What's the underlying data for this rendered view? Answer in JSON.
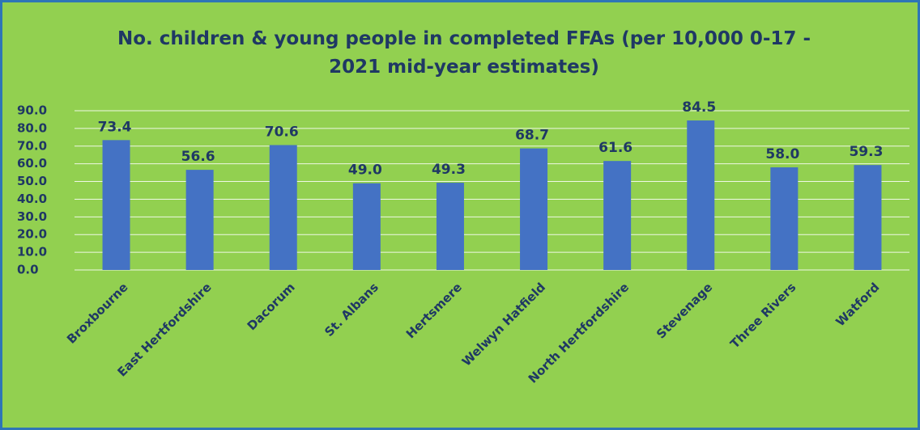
{
  "chart_data": {
    "type": "bar",
    "title": "No. children & young people in completed FFAs (per 10,000 0-17 - 2021 mid-year estimates)",
    "categories": [
      "Broxbourne",
      "East Hertfordshire",
      "Dacorum",
      "St. Albans",
      "Hertsmere",
      "Welwyn Hatfield",
      "North Hertfordshire",
      "Stevenage",
      "Three Rivers",
      "Watford"
    ],
    "values": [
      73.4,
      56.6,
      70.6,
      49.0,
      49.3,
      68.7,
      61.6,
      84.5,
      58.0,
      59.3
    ],
    "value_labels": [
      "73.4",
      "56.6",
      "70.6",
      "49.0",
      "49.3",
      "68.7",
      "61.6",
      "84.5",
      "58.0",
      "59.3"
    ],
    "color": "#4472c4",
    "ylim": [
      0,
      90
    ],
    "yticks": [
      {
        "value": 0,
        "label": "0.0"
      },
      {
        "value": 10,
        "label": "10.0"
      },
      {
        "value": 20,
        "label": "20.0"
      },
      {
        "value": 30,
        "label": "30.0"
      },
      {
        "value": 40,
        "label": "40.0"
      },
      {
        "value": 50,
        "label": "50.0"
      },
      {
        "value": 60,
        "label": "60.0"
      },
      {
        "value": 70,
        "label": "70.0"
      },
      {
        "value": 80,
        "label": "80.0"
      },
      {
        "value": 90,
        "label": "90.0"
      }
    ],
    "grid": true
  }
}
